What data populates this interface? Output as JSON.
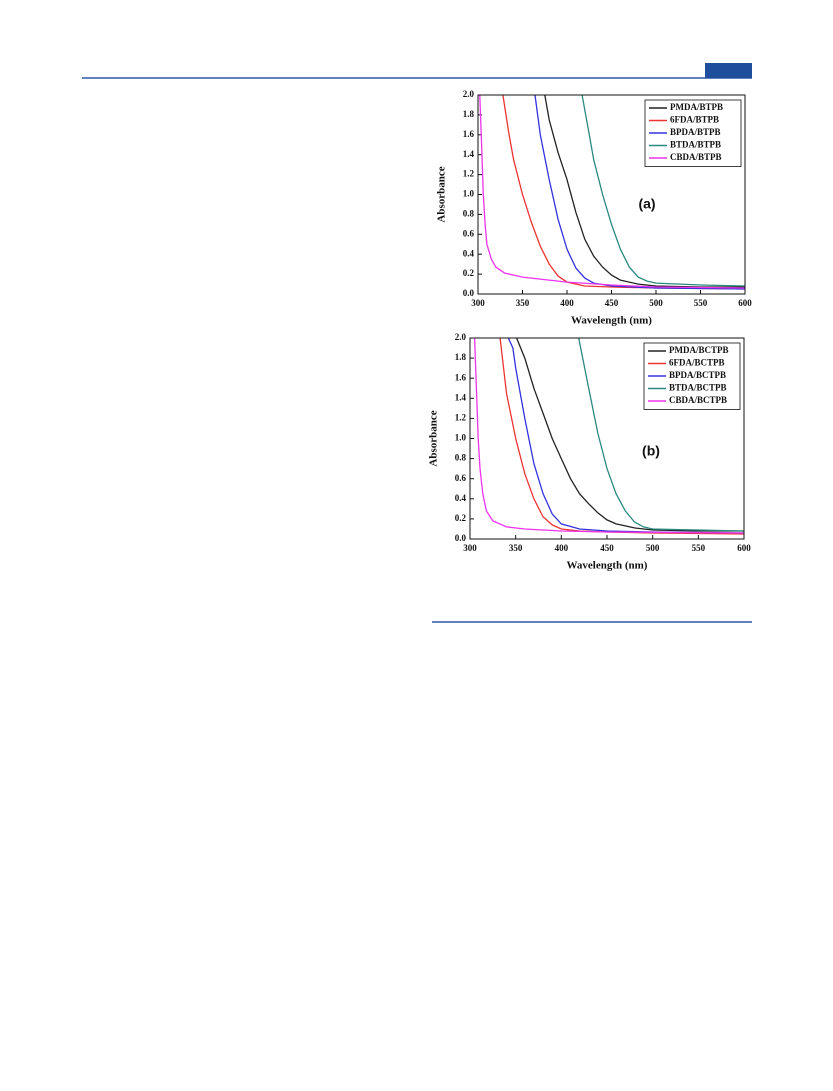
{
  "chart_data": [
    {
      "type": "line",
      "annotation": "(a)",
      "xlabel": "Wavelength (nm)",
      "ylabel": "Absorbance",
      "xlim": [
        300,
        600
      ],
      "ylim": [
        0,
        2
      ],
      "xticks": [
        300,
        350,
        400,
        450,
        500,
        550,
        600
      ],
      "yticks": [
        {
          "value": 0,
          "label": "0.0"
        },
        0.2,
        0.4,
        0.6,
        0.8,
        {
          "value": 1,
          "label": "1.0"
        },
        1.2,
        1.4,
        1.6,
        1.8,
        {
          "value": 2,
          "label": "2.0"
        }
      ],
      "legend": "upper right",
      "series": [
        {
          "name": "PMDA/BTPB",
          "color": "#222222",
          "x": [
            375,
            380,
            390,
            400,
            410,
            420,
            430,
            440,
            450,
            460,
            480,
            500,
            550,
            600
          ],
          "values": [
            2.0,
            1.75,
            1.42,
            1.15,
            0.82,
            0.55,
            0.38,
            0.27,
            0.19,
            0.14,
            0.1,
            0.08,
            0.07,
            0.07
          ]
        },
        {
          "name": "6FDA/BTPB",
          "color": "#ee3333",
          "x": [
            328,
            335,
            340,
            350,
            360,
            370,
            380,
            390,
            400,
            420,
            450,
            500,
            600
          ],
          "values": [
            2.0,
            1.6,
            1.35,
            1.0,
            0.72,
            0.48,
            0.3,
            0.18,
            0.12,
            0.08,
            0.07,
            0.06,
            0.05
          ]
        },
        {
          "name": "BPDA/BTPB",
          "color": "#3333dd",
          "x": [
            364,
            370,
            380,
            390,
            400,
            410,
            420,
            430,
            450,
            500,
            600
          ],
          "values": [
            2.0,
            1.6,
            1.15,
            0.75,
            0.45,
            0.26,
            0.16,
            0.11,
            0.08,
            0.06,
            0.05
          ]
        },
        {
          "name": "BTDA/BTPB",
          "color": "#2a8a80",
          "x": [
            417,
            425,
            430,
            440,
            450,
            460,
            470,
            480,
            490,
            500,
            550,
            600
          ],
          "values": [
            2.0,
            1.6,
            1.35,
            1.0,
            0.7,
            0.45,
            0.27,
            0.17,
            0.13,
            0.11,
            0.09,
            0.08
          ]
        },
        {
          "name": "CBDA/BTPB",
          "color": "#ee33ee",
          "x": [
            302,
            304,
            306,
            308,
            310,
            315,
            320,
            330,
            350,
            400,
            450,
            500,
            600
          ],
          "values": [
            2.0,
            1.5,
            1.0,
            0.7,
            0.5,
            0.35,
            0.27,
            0.21,
            0.17,
            0.12,
            0.09,
            0.07,
            0.06
          ]
        }
      ]
    },
    {
      "type": "line",
      "annotation": "(b)",
      "xlabel": "Wavelength (nm)",
      "ylabel": "Absorbance",
      "xlim": [
        300,
        600
      ],
      "ylim": [
        0,
        2
      ],
      "xticks": [
        300,
        350,
        400,
        450,
        500,
        550,
        600
      ],
      "yticks": [
        {
          "value": 0,
          "label": "0.0"
        },
        0.2,
        0.4,
        0.6,
        0.8,
        {
          "value": 1,
          "label": "1.0"
        },
        1.2,
        1.4,
        1.6,
        1.8,
        {
          "value": 2,
          "label": "2.0"
        }
      ],
      "legend": "upper right",
      "series": [
        {
          "name": "PMDA/BCTPB",
          "color": "#222222",
          "x": [
            351,
            360,
            370,
            380,
            390,
            400,
            410,
            420,
            430,
            440,
            450,
            460,
            480,
            500,
            550,
            600
          ],
          "values": [
            2.0,
            1.8,
            1.5,
            1.25,
            1.0,
            0.8,
            0.6,
            0.45,
            0.35,
            0.26,
            0.19,
            0.15,
            0.11,
            0.09,
            0.08,
            0.08
          ]
        },
        {
          "name": "6FDA/BCTPB",
          "color": "#ee3333",
          "x": [
            333,
            340,
            350,
            360,
            370,
            380,
            390,
            400,
            420,
            450,
            500,
            600
          ],
          "values": [
            2.0,
            1.45,
            1.0,
            0.65,
            0.4,
            0.22,
            0.14,
            0.1,
            0.08,
            0.07,
            0.06,
            0.05
          ]
        },
        {
          "name": "BPDA/BCTPB",
          "color": "#3333dd",
          "x": [
            342,
            347,
            350,
            360,
            370,
            380,
            390,
            400,
            420,
            450,
            500,
            600
          ],
          "values": [
            2.0,
            1.9,
            1.7,
            1.2,
            0.75,
            0.45,
            0.25,
            0.15,
            0.1,
            0.08,
            0.07,
            0.06
          ]
        },
        {
          "name": "BTDA/BCTPB",
          "color": "#2a8a80",
          "x": [
            419,
            430,
            440,
            450,
            460,
            470,
            480,
            490,
            500,
            550,
            600
          ],
          "values": [
            2.0,
            1.5,
            1.05,
            0.7,
            0.45,
            0.28,
            0.17,
            0.12,
            0.1,
            0.09,
            0.08
          ]
        },
        {
          "name": "CBDA/BCTPB",
          "color": "#ee33ee",
          "x": [
            305,
            307,
            309,
            311,
            314,
            318,
            325,
            340,
            360,
            400,
            450,
            600
          ],
          "values": [
            2.0,
            1.5,
            1.0,
            0.7,
            0.45,
            0.28,
            0.18,
            0.12,
            0.1,
            0.08,
            0.07,
            0.06
          ]
        }
      ]
    }
  ]
}
